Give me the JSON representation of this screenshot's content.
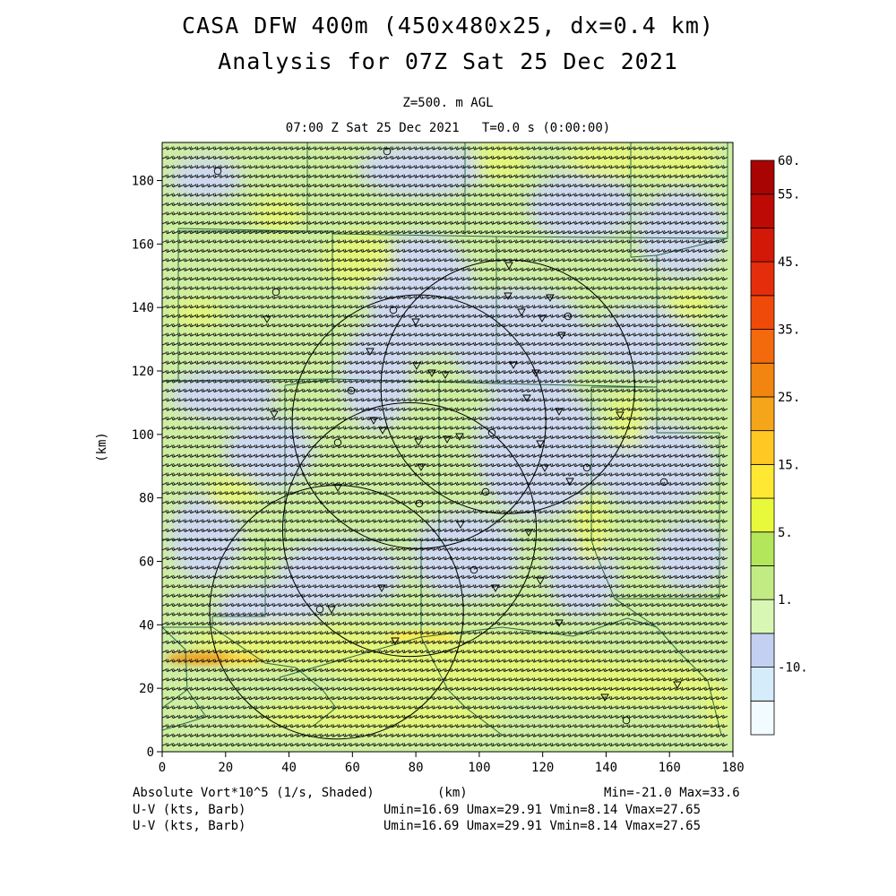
{
  "header": {
    "title_line1": "CASA DFW 400m (450x480x25, dx=0.4 km)",
    "title_line2": "Analysis for 07Z Sat 25 Dec 2021",
    "level": "Z=500. m AGL",
    "time": "07:00 Z Sat 25 Dec 2021   T=0.0 s (0:00:00)"
  },
  "footer": {
    "field1": "Absolute Vort*10^5 (1/s, Shaded)",
    "xunit": "(km)",
    "minmax": "Min=-21.0 Max=33.6",
    "field2": "U-V (kts, Barb)",
    "field3": "U-V (kts, Barb)",
    "uv_range2": "Umin=16.69 Umax=29.91 Vmin=8.14 Vmax=27.65",
    "uv_range3": "Umin=16.69 Umax=29.91 Vmin=8.14 Vmax=27.65"
  },
  "colors": {
    "lightgreen": "#cdeea0",
    "yellowgreen": "#e6f776",
    "lightblue": "#cfd9f4",
    "orange": "#f0a024",
    "barb": "#111111",
    "county": "#2a6a4a",
    "radar": "#000000"
  },
  "chart_data": {
    "type": "heatmap",
    "x_label": "(km)",
    "y_label": "(km)",
    "xlim": [
      0,
      180
    ],
    "ylim": [
      0,
      192
    ],
    "x_ticks": [
      0,
      20,
      40,
      60,
      80,
      100,
      120,
      140,
      160,
      180
    ],
    "y_ticks": [
      0,
      20,
      40,
      60,
      80,
      100,
      120,
      140,
      160,
      180
    ],
    "x_tick_labels": [
      "0",
      "20",
      "40",
      "60",
      "80",
      "100",
      "120",
      "140",
      "160",
      "180"
    ],
    "y_tick_labels": [
      "0",
      "20",
      "40",
      "60",
      "80",
      "100",
      "120",
      "140",
      "160",
      "180"
    ],
    "field_min": -21.0,
    "field_max": 33.6,
    "colorbar": {
      "labels": [
        "60.",
        "55.",
        "45.",
        "35.",
        "25.",
        "15.",
        "5.",
        "1.",
        "-10."
      ],
      "colors": [
        "#f2fbff",
        "#d5ecfa",
        "#c4d0f2",
        "#d9f7b4",
        "#c3eb84",
        "#b4e65c",
        "#e8f83a",
        "#ffe833",
        "#ffc823",
        "#f5a51a",
        "#f28410",
        "#f26a0c",
        "#f04a0a",
        "#e42d0a",
        "#d21806",
        "#bd0a04",
        "#a80404"
      ]
    },
    "radar_circles": [
      {
        "cx": 55,
        "cy": 44,
        "r": 40
      },
      {
        "cx": 78,
        "cy": 70,
        "r": 40
      },
      {
        "cx": 81,
        "cy": 104,
        "r": 40
      },
      {
        "cx": 109,
        "cy": 115,
        "r": 40
      }
    ],
    "wind_range": {
      "umin": 16.69,
      "umax": 29.91,
      "vmin": 8.14,
      "vmax": 27.65
    }
  }
}
